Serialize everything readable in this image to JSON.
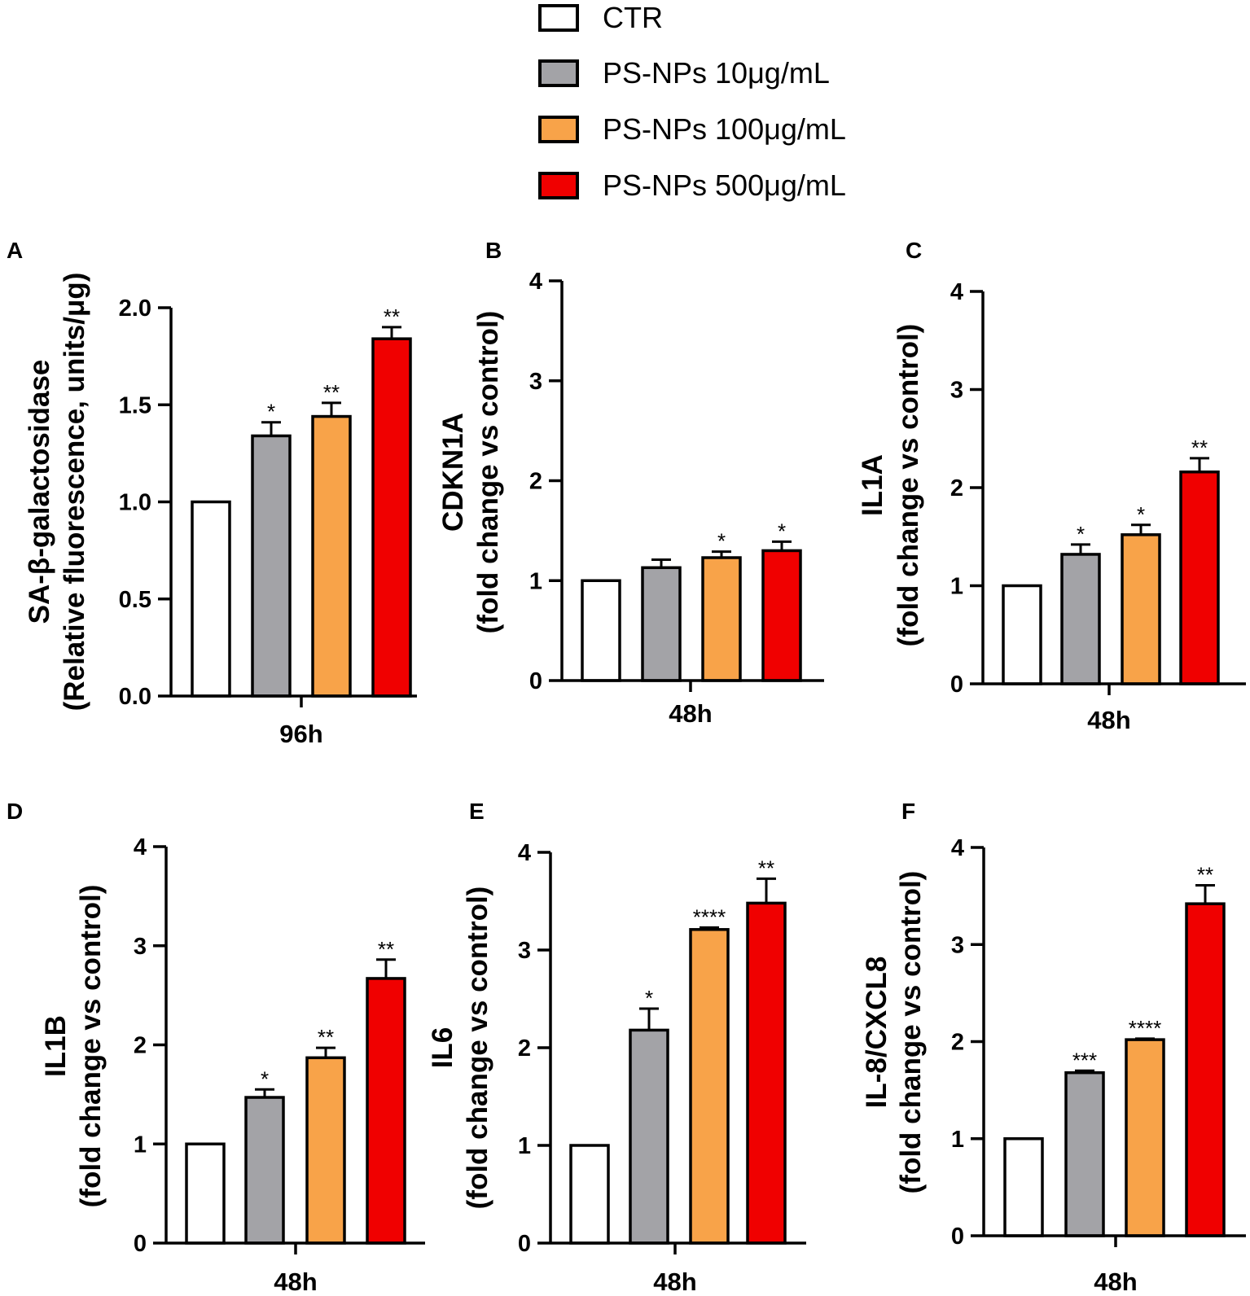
{
  "colors": {
    "CTR": "#ffffff",
    "PS-NPs 10μg/mL": "#a3a3a7",
    "PS-NPs 100μg/mL": "#f8a349",
    "PS-NPs 500μg/mL": "#f00000"
  },
  "legend": [
    "CTR",
    "PS-NPs 10μg/mL",
    "PS-NPs 100μg/mL",
    "PS-NPs 500μg/mL"
  ],
  "chart_data": [
    {
      "panel": "A",
      "type": "bar",
      "ylabel_line1": "SA-β-galactosidase",
      "ylabel_line2": "(Relative fluorescence, units/μg)",
      "xlabel": "96h",
      "ylim": [
        0,
        2.0
      ],
      "ticks": [
        "0.0",
        "0.5",
        "1.0",
        "1.5",
        "2.0"
      ],
      "series": [
        "CTR",
        "PS-NPs 10μg/mL",
        "PS-NPs 100μg/mL",
        "PS-NPs 500μg/mL"
      ],
      "values": [
        1.0,
        1.34,
        1.44,
        1.84
      ],
      "errors": [
        0,
        0.07,
        0.07,
        0.06
      ],
      "significance": [
        "",
        "*",
        "**",
        "**"
      ]
    },
    {
      "panel": "B",
      "type": "bar",
      "ylabel_line1": "CDKN1A",
      "ylabel_line2": "(fold change vs control)",
      "xlabel": "48h",
      "ylim": [
        0,
        4
      ],
      "ticks": [
        "0",
        "1",
        "2",
        "3",
        "4"
      ],
      "series": [
        "CTR",
        "PS-NPs 10μg/mL",
        "PS-NPs 100μg/mL",
        "PS-NPs 500μg/mL"
      ],
      "values": [
        1.0,
        1.13,
        1.23,
        1.3
      ],
      "errors": [
        0,
        0.08,
        0.06,
        0.09
      ],
      "significance": [
        "",
        "",
        "*",
        "*"
      ]
    },
    {
      "panel": "C",
      "type": "bar",
      "ylabel_line1": "IL1A",
      "ylabel_line2": "(fold change vs control)",
      "xlabel": "48h",
      "ylim": [
        0,
        4
      ],
      "ticks": [
        "0",
        "1",
        "2",
        "3",
        "4"
      ],
      "series": [
        "CTR",
        "PS-NPs 10μg/mL",
        "PS-NPs 100μg/mL",
        "PS-NPs 500μg/mL"
      ],
      "values": [
        1.0,
        1.32,
        1.52,
        2.16
      ],
      "errors": [
        0,
        0.1,
        0.1,
        0.14
      ],
      "significance": [
        "",
        "*",
        "*",
        "**"
      ]
    },
    {
      "panel": "D",
      "type": "bar",
      "ylabel_line1": "IL1B",
      "ylabel_line2": "(fold change vs control)",
      "xlabel": "48h",
      "ylim": [
        0,
        4
      ],
      "ticks": [
        "0",
        "1",
        "2",
        "3",
        "4"
      ],
      "series": [
        "CTR",
        "PS-NPs 10μg/mL",
        "PS-NPs 100μg/mL",
        "PS-NPs 500μg/mL"
      ],
      "values": [
        1.0,
        1.47,
        1.87,
        2.67
      ],
      "errors": [
        0,
        0.08,
        0.1,
        0.19
      ],
      "significance": [
        "",
        "*",
        "**",
        "**"
      ]
    },
    {
      "panel": "E",
      "type": "bar",
      "ylabel_line1": "IL6",
      "ylabel_line2": "(fold change vs control)",
      "xlabel": "48h",
      "ylim": [
        0,
        4
      ],
      "ticks": [
        "0",
        "1",
        "2",
        "3",
        "4"
      ],
      "series": [
        "CTR",
        "PS-NPs 10μg/mL",
        "PS-NPs 100μg/mL",
        "PS-NPs 500μg/mL"
      ],
      "values": [
        1.0,
        2.18,
        3.21,
        3.48
      ],
      "errors": [
        0,
        0.22,
        0.02,
        0.25
      ],
      "significance": [
        "",
        "*",
        "****",
        "**"
      ]
    },
    {
      "panel": "F",
      "type": "bar",
      "ylabel_line1": "IL-8/CXCL8",
      "ylabel_line2": "(fold change vs control)",
      "xlabel": "48h",
      "ylim": [
        0,
        4
      ],
      "ticks": [
        "0",
        "1",
        "2",
        "3",
        "4"
      ],
      "series": [
        "CTR",
        "PS-NPs 10μg/mL",
        "PS-NPs 100μg/mL",
        "PS-NPs 500μg/mL"
      ],
      "values": [
        1.0,
        1.68,
        2.02,
        3.42
      ],
      "errors": [
        0,
        0.02,
        0.01,
        0.19
      ],
      "significance": [
        "",
        "***",
        "****",
        "**"
      ]
    }
  ]
}
